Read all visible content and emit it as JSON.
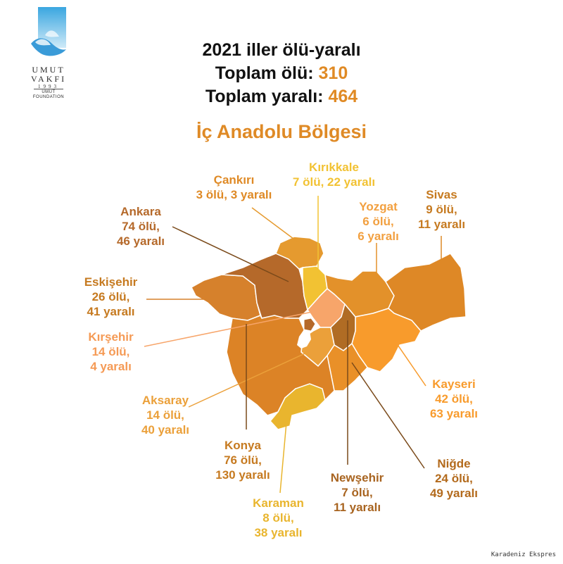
{
  "header": {
    "title": "2021 iller ölü-yaralı",
    "total_dead_label": "Toplam ölü:",
    "total_dead": "310",
    "total_injured_label": "Toplam yaralı:",
    "total_injured": "464",
    "region": "İç Anadolu Bölgesi"
  },
  "logo": {
    "line1": "UMUT",
    "line2": "VAKFI",
    "line3": "1993",
    "line4": "UMUT",
    "line5": "FOUNDATION"
  },
  "provinces": [
    {
      "name": "Çankırı",
      "stats": "3 ölü, 3 yaralı",
      "dead": 3,
      "injured": 3,
      "color": "#e59a2f"
    },
    {
      "name": "Kırıkkale",
      "stats": "7 ölü, 22 yaralı",
      "dead": 7,
      "injured": 22,
      "color": "#f2c233"
    },
    {
      "name": "Sivas",
      "dead_text": "9 ölü,",
      "injured_text": "11 yaralı",
      "dead": 9,
      "injured": 11,
      "color": "#de8826"
    },
    {
      "name": "Yozgat",
      "dead_text": "6 ölü,",
      "injured_text": "6 yaralı",
      "dead": 6,
      "injured": 6,
      "color": "#e3912a"
    },
    {
      "name": "Ankara",
      "dead_text": "74 ölü,",
      "injured_text": "46 yaralı",
      "dead": 74,
      "injured": 46,
      "color": "#b5692a"
    },
    {
      "name": "Eskişehir",
      "dead_text": "26 ölü,",
      "injured_text": "41 yaralı",
      "dead": 26,
      "injured": 41,
      "color": "#d6812c"
    },
    {
      "name": "Kırşehir",
      "dead_text": "14 ölü,",
      "injured_text": "4 yaralı",
      "dead": 14,
      "injured": 4,
      "color": "#f7a56a"
    },
    {
      "name": "Aksaray",
      "dead_text": "14 ölü,",
      "injured_text": "40 yaralı",
      "dead": 14,
      "injured": 40,
      "color": "#eba03a"
    },
    {
      "name": "Kayseri",
      "dead_text": "42 ölü,",
      "injured_text": "63 yaralı",
      "dead": 42,
      "injured": 63,
      "color": "#f89b2c"
    },
    {
      "name": "Konya",
      "dead_text": "76 ölü,",
      "injured_text": "130 yaralı",
      "dead": 76,
      "injured": 130,
      "color": "#dc8326"
    },
    {
      "name": "Niğde",
      "dead_text": "24 ölü,",
      "injured_text": "49 yaralı",
      "dead": 24,
      "injured": 49,
      "color": "#e99028"
    },
    {
      "name": "Newşehir",
      "dead_text": "7 ölü,",
      "injured_text": "11 yaralı",
      "dead": 7,
      "injured": 11,
      "color": "#b06c24"
    },
    {
      "name": "Karaman",
      "dead_text": "8 ölü,",
      "injured_text": "38 yaralı",
      "dead": 8,
      "injured": 38,
      "color": "#e9b52e"
    }
  ],
  "credit": "Karadeniz Ekspres"
}
